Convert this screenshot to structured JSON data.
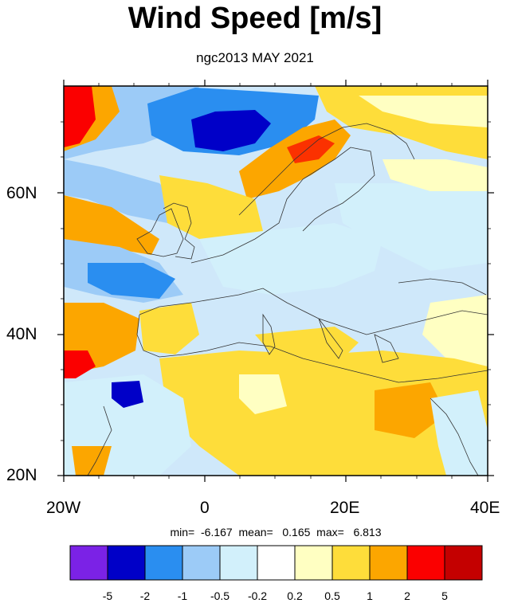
{
  "title": "Wind Speed [m/s]",
  "subtitle": "ngc2013 MAY 2021",
  "stats": "min=  -6.167  mean=   0.165  max=   6.813",
  "lat_labels": [
    "60N",
    "40N",
    "20N"
  ],
  "lon_labels": [
    "20W",
    "0",
    "20E",
    "40E"
  ],
  "colorbar": {
    "colors": [
      "#7b22e6",
      "#0000c8",
      "#2a8ef0",
      "#9ccbf7",
      "#d2f0fb",
      "#ffffff",
      "#ffffc2",
      "#fedd3a",
      "#fca600",
      "#fb0000",
      "#c40000"
    ],
    "labels": [
      "-5",
      "-2",
      "-1",
      "-0.5",
      "-0.2",
      "0.2",
      "0.5",
      "1",
      "2",
      "5"
    ]
  },
  "map_extent": {
    "lon": [
      -20,
      40
    ],
    "lat": [
      20,
      75
    ]
  }
}
